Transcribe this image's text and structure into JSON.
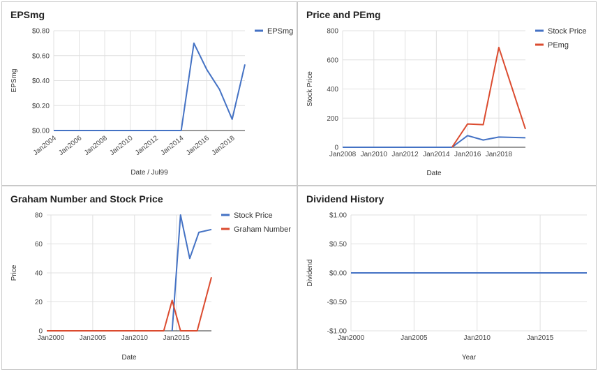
{
  "colors": {
    "blue": "#4472c4",
    "red": "#db4b2f",
    "grid": "#e0e0e0",
    "axis": "#333333"
  },
  "chart_data": [
    {
      "type": "line",
      "title": "EPSmg",
      "xlabel": "Date / Jul99",
      "ylabel": "EPSmg",
      "x_range": [
        2004,
        2019
      ],
      "y_range": [
        0,
        0.8
      ],
      "x_ticks": [
        2004,
        2006,
        2008,
        2010,
        2012,
        2014,
        2016,
        2018
      ],
      "x_tick_labels": [
        "Jan2004",
        "Jan2006",
        "Jan2008",
        "Jan2010",
        "Jan2012",
        "Jan2014",
        "Jan2016",
        "Jan2018"
      ],
      "y_ticks": [
        0,
        0.2,
        0.4,
        0.6,
        0.8
      ],
      "y_tick_labels": [
        "$0.00",
        "$0.20",
        "$0.40",
        "$0.60",
        "$0.80"
      ],
      "legend_position": "top-right",
      "series": [
        {
          "name": "EPSmg",
          "color": "#4472c4",
          "points": [
            [
              2004,
              0
            ],
            [
              2014,
              0
            ],
            [
              2015,
              0.7
            ],
            [
              2016,
              0.49
            ],
            [
              2017,
              0.33
            ],
            [
              2018,
              0.09
            ],
            [
              2019,
              0.53
            ]
          ]
        }
      ]
    },
    {
      "type": "line",
      "title": "Price and PEmg",
      "xlabel": "Date",
      "ylabel": "Stock Price",
      "x_range": [
        2008,
        2019.7
      ],
      "y_range": [
        0,
        800
      ],
      "x_ticks": [
        2008,
        2010,
        2012,
        2014,
        2016,
        2018
      ],
      "x_tick_labels": [
        "Jan2008",
        "Jan2010",
        "Jan2012",
        "Jan2014",
        "Jan2016",
        "Jan2018"
      ],
      "y_ticks": [
        0,
        200,
        400,
        600,
        800
      ],
      "y_tick_labels": [
        "0",
        "200",
        "400",
        "600",
        "800"
      ],
      "legend_position": "top-right",
      "series": [
        {
          "name": "Stock Price",
          "color": "#4472c4",
          "points": [
            [
              2008,
              0
            ],
            [
              2015,
              0
            ],
            [
              2016,
              80
            ],
            [
              2017,
              50
            ],
            [
              2018,
              70
            ],
            [
              2019.7,
              65
            ]
          ]
        },
        {
          "name": "PEmg",
          "color": "#db4b2f",
          "points": [
            [
              2015,
              0
            ],
            [
              2016,
              160
            ],
            [
              2017,
              155
            ],
            [
              2018,
              685
            ],
            [
              2019.7,
              125
            ]
          ]
        }
      ]
    },
    {
      "type": "line",
      "title": "Graham Number and Stock Price",
      "xlabel": "Date",
      "ylabel": "Price",
      "x_range": [
        1999.5,
        2019.2
      ],
      "y_range": [
        0,
        80
      ],
      "x_ticks": [
        2000,
        2005,
        2010,
        2015
      ],
      "x_tick_labels": [
        "Jan2000",
        "Jan2005",
        "Jan2010",
        "Jan2015"
      ],
      "y_ticks": [
        0,
        20,
        40,
        60,
        80
      ],
      "y_tick_labels": [
        "0",
        "20",
        "40",
        "60",
        "80"
      ],
      "legend_position": "top-right",
      "series": [
        {
          "name": "Stock Price",
          "color": "#4472c4",
          "points": [
            [
              2014.5,
              0
            ],
            [
              2015.5,
              80
            ],
            [
              2016.6,
              50
            ],
            [
              2017.7,
              68
            ],
            [
              2019.2,
              70
            ]
          ]
        },
        {
          "name": "Graham Number",
          "color": "#db4b2f",
          "points": [
            [
              1999.5,
              0
            ],
            [
              2013.5,
              0
            ],
            [
              2014.5,
              21
            ],
            [
              2015.5,
              0
            ],
            [
              2017.5,
              0
            ],
            [
              2019.2,
              37
            ]
          ]
        }
      ]
    },
    {
      "type": "line",
      "title": "Dividend History",
      "xlabel": "Year",
      "ylabel": "Dividend",
      "x_range": [
        2000,
        2018.7
      ],
      "y_range": [
        -1,
        1
      ],
      "x_ticks": [
        2000,
        2005,
        2010,
        2015
      ],
      "x_tick_labels": [
        "Jan2000",
        "Jan2005",
        "Jan2010",
        "Jan2015"
      ],
      "y_ticks": [
        -1,
        -0.5,
        0,
        0.5,
        1
      ],
      "y_tick_labels": [
        "-$1.00",
        "-$0.50",
        "$0.00",
        "$0.50",
        "$1.00"
      ],
      "legend_position": "none",
      "series": [
        {
          "color": "#4472c4",
          "points": [
            [
              2000,
              0
            ],
            [
              2018.7,
              0
            ]
          ]
        }
      ]
    }
  ]
}
